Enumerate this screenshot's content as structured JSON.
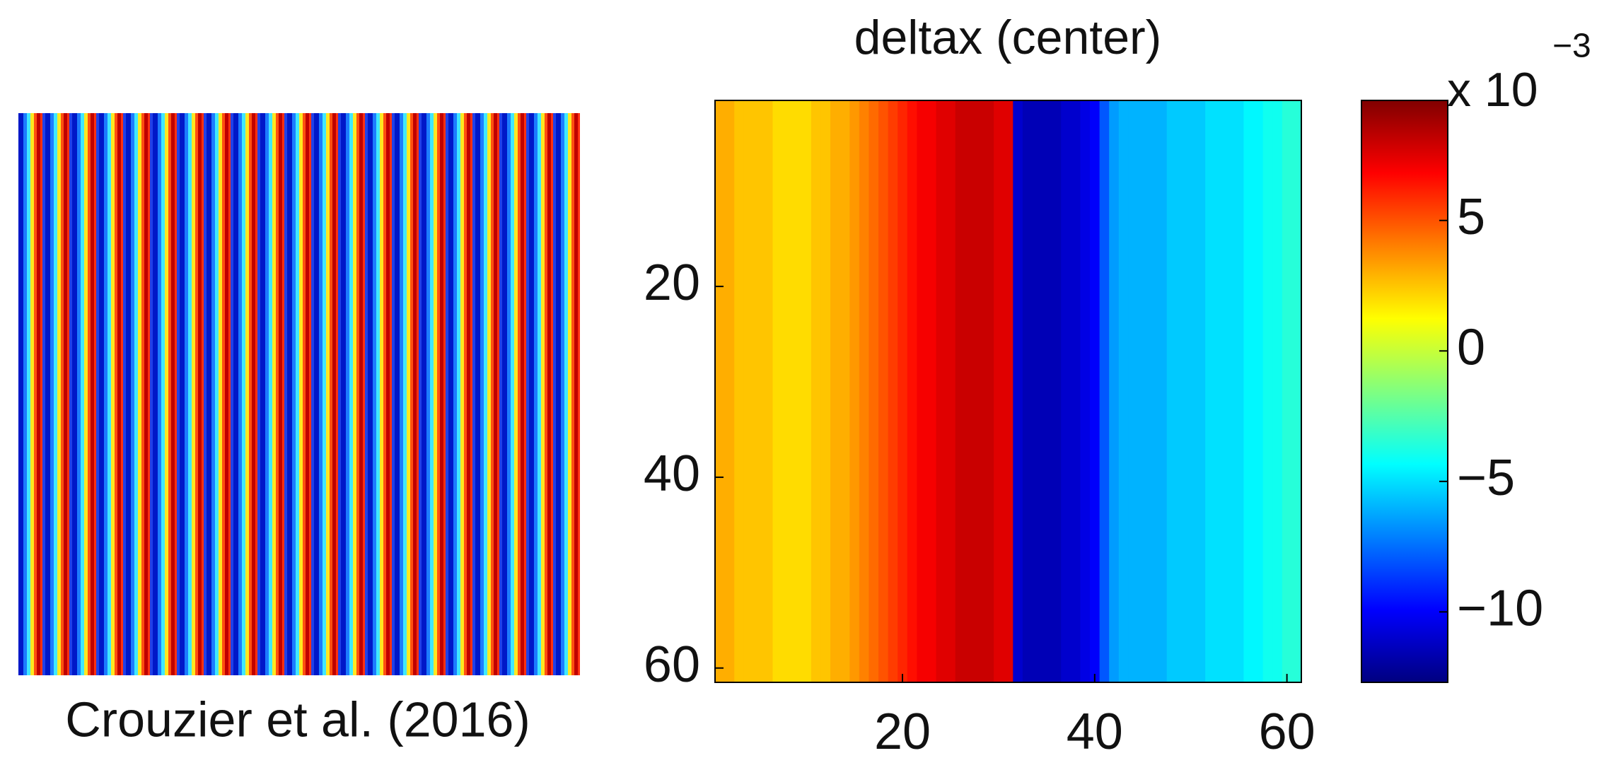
{
  "caption": "Crouzier et al. (2016)",
  "chart_data": {
    "type": "heatmap",
    "title": "deltax (center)",
    "x": [
      1,
      2,
      3,
      4,
      5,
      6,
      7,
      8,
      9,
      10,
      11,
      12,
      13,
      14,
      15,
      16,
      17,
      18,
      19,
      20,
      21,
      22,
      23,
      24,
      25,
      26,
      27,
      28,
      29,
      30,
      31,
      32,
      33,
      34,
      35,
      36,
      37,
      38,
      39,
      40,
      41,
      42,
      43,
      44,
      45,
      46,
      47,
      48,
      49,
      50,
      51,
      52,
      53,
      54,
      55,
      56,
      57,
      58,
      59,
      60,
      61
    ],
    "values": [
      3,
      3,
      2.5,
      2.5,
      2.5,
      2.5,
      2,
      2,
      2,
      2,
      2.5,
      2.5,
      3,
      3,
      3.5,
      4,
      4.5,
      5,
      5.5,
      6,
      6.5,
      7,
      7,
      7.5,
      7.5,
      8,
      8,
      8,
      8,
      7.5,
      7.5,
      -11,
      -11.5,
      -11.5,
      -11.5,
      -11.5,
      -11,
      -11,
      -10.5,
      -10,
      -8,
      -6.5,
      -6,
      -6,
      -6,
      -6,
      -6,
      -5.5,
      -5.5,
      -5.5,
      -5.5,
      -5,
      -5,
      -5,
      -5,
      -4.5,
      -4.5,
      -4,
      -4,
      -3.5,
      -3.5
    ],
    "xlim": [
      0.5,
      61.5
    ],
    "ylim": [
      0.5,
      61.5
    ],
    "y_reversed": true,
    "xticks": [
      20,
      40,
      60
    ],
    "yticks": [
      20,
      40,
      60
    ],
    "colormap": "jet",
    "clim": [
      -12.7,
      9.6
    ],
    "colorbar_ticks": [
      5,
      0,
      {
        "value": -5,
        "label": "−5"
      },
      {
        "value": -10,
        "label": "−10"
      }
    ],
    "colorbar_scale": "x 10",
    "colorbar_exponent": "−3"
  }
}
